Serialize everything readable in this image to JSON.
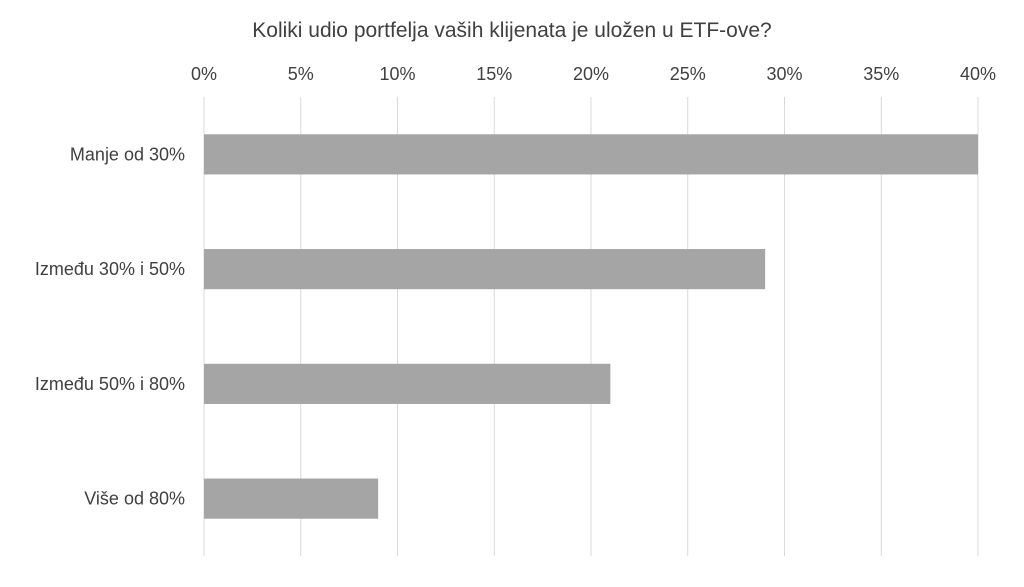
{
  "chart_data": {
    "type": "bar",
    "orientation": "horizontal",
    "title": "Koliki udio portfelja vaših klijenata je uložen u ETF-ove?",
    "categories": [
      "Manje od 30%",
      "Između 30% i 50%",
      "Između 50% i 80%",
      "Više od 80%"
    ],
    "values": [
      40,
      29,
      21,
      9
    ],
    "xlim": [
      0,
      40
    ],
    "x_ticks": [
      0,
      5,
      10,
      15,
      20,
      25,
      30,
      35,
      40
    ],
    "x_tick_labels": [
      "0%",
      "5%",
      "10%",
      "15%",
      "20%",
      "25%",
      "30%",
      "35%",
      "40%"
    ],
    "x_axis_position": "top",
    "grid": true,
    "legend": "none",
    "colors": {
      "bar": "#a5a5a5",
      "grid": "#d9d9d9",
      "text": "#404040"
    }
  }
}
